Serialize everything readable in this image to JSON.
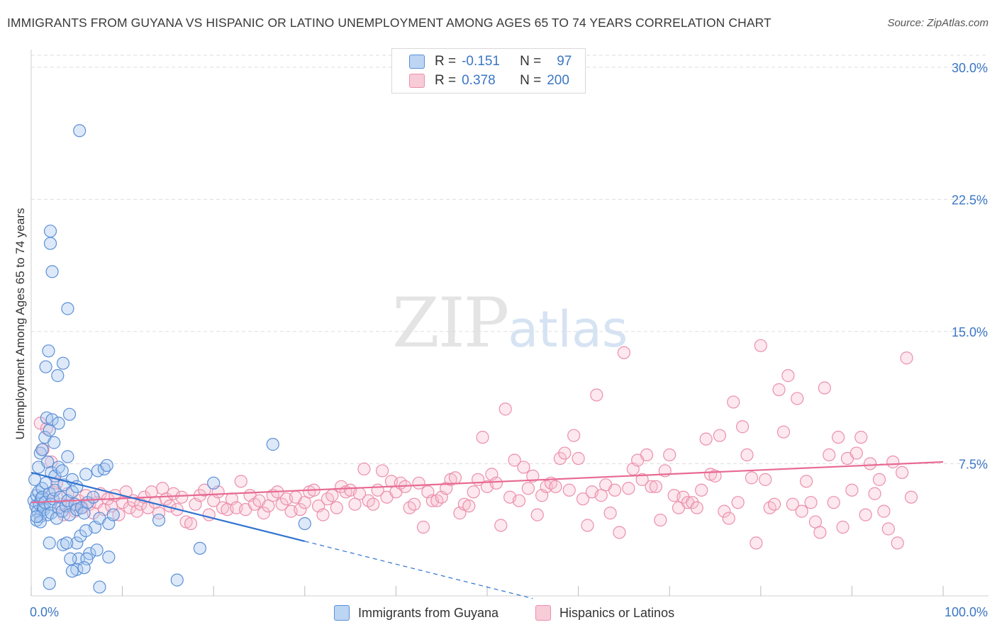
{
  "title": "IMMIGRANTS FROM GUYANA VS HISPANIC OR LATINO UNEMPLOYMENT AMONG AGES 65 TO 74 YEARS CORRELATION CHART",
  "source": "Source: ZipAtlas.com",
  "watermark": {
    "zip": "ZIP",
    "atlas": "atlas"
  },
  "legend": {
    "r_label": "R =",
    "n_label": "N =",
    "series": [
      {
        "r": "-0.151",
        "n": "97"
      },
      {
        "r": "0.378",
        "n": "200"
      }
    ]
  },
  "bottom_legend": [
    "Immigrants from Guyana",
    "Hispanics or Latinos"
  ],
  "colors": {
    "blue_fill": "#a9c8ef",
    "blue_stroke": "#5b8fd6",
    "blue_line": "#2f72d0",
    "pink_fill": "#f6bccd",
    "pink_stroke": "#ec8fac",
    "pink_line": "#e86a92",
    "grid": "#dddddd",
    "tick_text": "#3b76c4"
  },
  "chart_data": {
    "type": "scatter",
    "title": "IMMIGRANTS FROM GUYANA VS HISPANIC OR LATINO UNEMPLOYMENT AMONG AGES 65 TO 74 YEARS CORRELATION CHART",
    "xlabel": "",
    "ylabel": "Unemployment Among Ages 65 to 74 years",
    "xlim": [
      0,
      105
    ],
    "ylim": [
      0,
      31
    ],
    "y_ticks": [
      {
        "value": 7.5,
        "label": "7.5%"
      },
      {
        "value": 15,
        "label": "15.0%"
      },
      {
        "value": 22.5,
        "label": "22.5%"
      },
      {
        "value": 30,
        "label": "30.0%"
      }
    ],
    "x_ticks": [
      {
        "value": 0,
        "label": "0.0%"
      },
      {
        "value": 100,
        "label": "100.0%"
      }
    ],
    "grid": true,
    "legend_position": "top-center",
    "series": [
      {
        "name": "Immigrants from Guyana",
        "r": -0.151,
        "n": 97,
        "trend": {
          "x0": 0,
          "y0": 7.0,
          "x1": 30,
          "y1": 3.1,
          "dashed_to_x": 55
        },
        "points": [
          [
            0.3,
            5.4
          ],
          [
            0.5,
            5.1
          ],
          [
            0.6,
            5.7
          ],
          [
            0.7,
            4.8
          ],
          [
            0.8,
            5.9
          ],
          [
            0.9,
            5.2
          ],
          [
            1.0,
            4.5
          ],
          [
            1.1,
            5.5
          ],
          [
            1.2,
            6.1
          ],
          [
            1.3,
            5.0
          ],
          [
            0.4,
            6.6
          ],
          [
            0.6,
            4.3
          ],
          [
            0.8,
            7.3
          ],
          [
            1.0,
            8.1
          ],
          [
            1.2,
            5.6
          ],
          [
            1.4,
            4.9
          ],
          [
            1.5,
            5.3
          ],
          [
            1.6,
            6.4
          ],
          [
            1.8,
            4.6
          ],
          [
            2.0,
            5.8
          ],
          [
            2.1,
            5.2
          ],
          [
            2.2,
            4.7
          ],
          [
            2.4,
            5.5
          ],
          [
            2.6,
            6.0
          ],
          [
            2.8,
            4.4
          ],
          [
            3.0,
            5.0
          ],
          [
            3.2,
            5.6
          ],
          [
            3.4,
            4.8
          ],
          [
            3.6,
            6.3
          ],
          [
            3.8,
            5.1
          ],
          [
            4.0,
            5.4
          ],
          [
            4.2,
            4.6
          ],
          [
            4.5,
            5.9
          ],
          [
            4.8,
            5.2
          ],
          [
            5.0,
            4.9
          ],
          [
            1.2,
            8.3
          ],
          [
            1.5,
            9.0
          ],
          [
            1.7,
            10.1
          ],
          [
            2.0,
            9.4
          ],
          [
            2.3,
            10.0
          ],
          [
            2.5,
            8.7
          ],
          [
            1.8,
            7.6
          ],
          [
            2.2,
            7.0
          ],
          [
            2.6,
            6.8
          ],
          [
            3.0,
            7.3
          ],
          [
            3.4,
            7.1
          ],
          [
            4.0,
            7.9
          ],
          [
            4.5,
            6.6
          ],
          [
            5.0,
            6.2
          ],
          [
            6.0,
            6.9
          ],
          [
            1.6,
            13.0
          ],
          [
            1.9,
            13.9
          ],
          [
            2.1,
            20.7
          ],
          [
            2.1,
            20.0
          ],
          [
            2.3,
            18.4
          ],
          [
            2.9,
            12.5
          ],
          [
            3.5,
            13.2
          ],
          [
            4.0,
            16.3
          ],
          [
            4.2,
            10.3
          ],
          [
            3.0,
            9.8
          ],
          [
            5.3,
            26.4
          ],
          [
            5.5,
            5.0
          ],
          [
            5.8,
            4.7
          ],
          [
            6.2,
            5.3
          ],
          [
            6.8,
            5.6
          ],
          [
            7.0,
            3.9
          ],
          [
            7.5,
            4.4
          ],
          [
            8.5,
            4.1
          ],
          [
            7.3,
            7.1
          ],
          [
            8.0,
            7.2
          ],
          [
            8.3,
            7.4
          ],
          [
            9.0,
            4.6
          ],
          [
            5.0,
            3.0
          ],
          [
            5.4,
            3.4
          ],
          [
            6.0,
            3.7
          ],
          [
            6.4,
            2.4
          ],
          [
            7.2,
            2.6
          ],
          [
            8.5,
            2.2
          ],
          [
            5.2,
            2.1
          ],
          [
            6.1,
            2.1
          ],
          [
            5.0,
            1.5
          ],
          [
            5.8,
            1.6
          ],
          [
            4.5,
            1.4
          ],
          [
            2.0,
            0.7
          ],
          [
            7.5,
            0.5
          ],
          [
            16.0,
            0.9
          ],
          [
            14.0,
            4.3
          ],
          [
            18.5,
            2.7
          ],
          [
            20.0,
            6.4
          ],
          [
            26.5,
            8.6
          ],
          [
            30.0,
            4.1
          ],
          [
            3.5,
            2.9
          ],
          [
            3.9,
            3.0
          ],
          [
            4.3,
            2.1
          ],
          [
            2.0,
            3.0
          ],
          [
            1.0,
            4.2
          ],
          [
            0.6,
            4.5
          ]
        ]
      },
      {
        "name": "Hispanics or Latinos",
        "r": 0.378,
        "n": 200,
        "trend": {
          "x0": 0,
          "y0": 5.3,
          "x1": 100,
          "y1": 7.6
        },
        "points": [
          [
            1.0,
            9.8
          ],
          [
            1.3,
            8.3
          ],
          [
            1.7,
            9.5
          ],
          [
            2.2,
            7.6
          ],
          [
            2.4,
            5.9
          ],
          [
            2.8,
            6.4
          ],
          [
            3.2,
            5.2
          ],
          [
            3.6,
            4.6
          ],
          [
            4.0,
            5.8
          ],
          [
            4.4,
            5.1
          ],
          [
            4.8,
            4.8
          ],
          [
            5.2,
            5.4
          ],
          [
            5.6,
            5.0
          ],
          [
            6.0,
            5.7
          ],
          [
            6.4,
            5.2
          ],
          [
            6.8,
            4.7
          ],
          [
            7.2,
            5.3
          ],
          [
            7.6,
            5.8
          ],
          [
            8.0,
            4.9
          ],
          [
            8.4,
            5.5
          ],
          [
            8.8,
            5.1
          ],
          [
            9.2,
            5.7
          ],
          [
            9.6,
            4.6
          ],
          [
            10.0,
            5.3
          ],
          [
            10.4,
            5.9
          ],
          [
            10.8,
            5.0
          ],
          [
            11.2,
            5.4
          ],
          [
            11.6,
            4.8
          ],
          [
            12.0,
            5.2
          ],
          [
            12.4,
            5.6
          ],
          [
            12.8,
            5.0
          ],
          [
            13.2,
            5.9
          ],
          [
            13.6,
            5.3
          ],
          [
            14.0,
            4.7
          ],
          [
            14.4,
            6.1
          ],
          [
            14.8,
            5.5
          ],
          [
            15.2,
            5.1
          ],
          [
            15.6,
            5.8
          ],
          [
            16.0,
            4.9
          ],
          [
            16.5,
            5.6
          ],
          [
            17.0,
            4.2
          ],
          [
            17.5,
            4.1
          ],
          [
            18.0,
            5.2
          ],
          [
            18.5,
            5.7
          ],
          [
            19.0,
            6.0
          ],
          [
            19.5,
            4.6
          ],
          [
            20.0,
            5.4
          ],
          [
            20.5,
            5.9
          ],
          [
            21.0,
            5.0
          ],
          [
            21.5,
            4.9
          ],
          [
            22.0,
            5.5
          ],
          [
            22.5,
            5.0
          ],
          [
            23.0,
            6.5
          ],
          [
            23.5,
            4.9
          ],
          [
            24.0,
            5.7
          ],
          [
            24.5,
            5.2
          ],
          [
            25.0,
            5.4
          ],
          [
            25.5,
            4.7
          ],
          [
            26.0,
            5.1
          ],
          [
            26.5,
            5.7
          ],
          [
            27.0,
            5.9
          ],
          [
            27.5,
            5.2
          ],
          [
            28.0,
            5.5
          ],
          [
            28.5,
            4.8
          ],
          [
            29.0,
            5.6
          ],
          [
            29.5,
            4.9
          ],
          [
            30.0,
            5.3
          ],
          [
            30.5,
            5.9
          ],
          [
            31.0,
            6.0
          ],
          [
            31.5,
            5.1
          ],
          [
            32.0,
            4.6
          ],
          [
            32.5,
            5.5
          ],
          [
            33.0,
            5.7
          ],
          [
            33.5,
            5.0
          ],
          [
            34.0,
            6.2
          ],
          [
            34.5,
            5.9
          ],
          [
            35.0,
            6.0
          ],
          [
            35.5,
            5.2
          ],
          [
            36.0,
            5.8
          ],
          [
            36.5,
            7.2
          ],
          [
            37.0,
            5.4
          ],
          [
            37.5,
            5.2
          ],
          [
            38.0,
            6.0
          ],
          [
            38.5,
            7.1
          ],
          [
            39.0,
            5.6
          ],
          [
            39.5,
            6.5
          ],
          [
            40.0,
            5.9
          ],
          [
            40.5,
            6.4
          ],
          [
            41.0,
            6.2
          ],
          [
            41.5,
            5.0
          ],
          [
            42.0,
            5.2
          ],
          [
            42.5,
            6.4
          ],
          [
            43.0,
            3.9
          ],
          [
            43.5,
            5.9
          ],
          [
            44.0,
            5.4
          ],
          [
            44.5,
            5.4
          ],
          [
            45.0,
            5.6
          ],
          [
            45.5,
            6.1
          ],
          [
            46.0,
            6.6
          ],
          [
            46.5,
            6.7
          ],
          [
            47.0,
            4.7
          ],
          [
            47.5,
            5.2
          ],
          [
            48.0,
            5.1
          ],
          [
            48.5,
            5.9
          ],
          [
            49.0,
            6.6
          ],
          [
            49.5,
            9.0
          ],
          [
            50.0,
            6.2
          ],
          [
            50.5,
            6.9
          ],
          [
            51.0,
            6.4
          ],
          [
            51.5,
            4.0
          ],
          [
            52.0,
            10.6
          ],
          [
            52.5,
            5.6
          ],
          [
            53.0,
            7.7
          ],
          [
            53.5,
            5.4
          ],
          [
            54.0,
            7.3
          ],
          [
            54.5,
            6.1
          ],
          [
            55.0,
            6.8
          ],
          [
            55.5,
            4.6
          ],
          [
            56.0,
            5.7
          ],
          [
            56.5,
            6.2
          ],
          [
            57.0,
            6.4
          ],
          [
            57.5,
            6.2
          ],
          [
            58.0,
            7.8
          ],
          [
            58.5,
            8.1
          ],
          [
            59.0,
            6.0
          ],
          [
            59.5,
            9.1
          ],
          [
            60.0,
            7.8
          ],
          [
            60.5,
            5.5
          ],
          [
            61.0,
            4.0
          ],
          [
            61.5,
            5.9
          ],
          [
            62.0,
            11.4
          ],
          [
            62.5,
            5.7
          ],
          [
            63.0,
            6.3
          ],
          [
            63.5,
            4.7
          ],
          [
            64.0,
            6.0
          ],
          [
            64.5,
            3.6
          ],
          [
            65.0,
            13.8
          ],
          [
            65.5,
            6.1
          ],
          [
            66.0,
            7.2
          ],
          [
            66.5,
            7.7
          ],
          [
            67.0,
            6.6
          ],
          [
            67.5,
            8.0
          ],
          [
            68.0,
            6.2
          ],
          [
            68.5,
            6.2
          ],
          [
            69.0,
            4.3
          ],
          [
            69.5,
            7.1
          ],
          [
            70.0,
            8.0
          ],
          [
            70.5,
            5.7
          ],
          [
            71.0,
            5.0
          ],
          [
            71.5,
            5.6
          ],
          [
            72.0,
            5.3
          ],
          [
            72.5,
            5.3
          ],
          [
            73.0,
            5.0
          ],
          [
            73.5,
            6.0
          ],
          [
            74.0,
            8.9
          ],
          [
            74.5,
            6.9
          ],
          [
            75.0,
            6.8
          ],
          [
            75.5,
            9.1
          ],
          [
            76.0,
            4.8
          ],
          [
            76.5,
            4.4
          ],
          [
            77.0,
            11.0
          ],
          [
            77.5,
            5.3
          ],
          [
            78.0,
            9.6
          ],
          [
            78.5,
            8.0
          ],
          [
            79.0,
            6.7
          ],
          [
            79.5,
            3.0
          ],
          [
            80.0,
            14.2
          ],
          [
            80.5,
            6.6
          ],
          [
            81.0,
            5.0
          ],
          [
            81.5,
            5.2
          ],
          [
            82.0,
            11.7
          ],
          [
            82.5,
            9.3
          ],
          [
            83.0,
            12.5
          ],
          [
            83.5,
            5.2
          ],
          [
            84.0,
            11.2
          ],
          [
            84.5,
            4.8
          ],
          [
            85.0,
            6.5
          ],
          [
            85.5,
            5.3
          ],
          [
            86.0,
            4.2
          ],
          [
            86.5,
            3.6
          ],
          [
            87.0,
            11.8
          ],
          [
            87.5,
            8.0
          ],
          [
            88.0,
            5.3
          ],
          [
            88.5,
            9.0
          ],
          [
            89.0,
            3.9
          ],
          [
            89.5,
            7.8
          ],
          [
            90.0,
            6.0
          ],
          [
            90.5,
            8.1
          ],
          [
            91.0,
            9.0
          ],
          [
            91.5,
            4.6
          ],
          [
            92.0,
            7.5
          ],
          [
            92.5,
            5.8
          ],
          [
            93.0,
            6.6
          ],
          [
            93.5,
            4.8
          ],
          [
            94.0,
            3.8
          ],
          [
            94.5,
            7.6
          ],
          [
            95.0,
            3.0
          ],
          [
            95.5,
            7.0
          ],
          [
            96.0,
            13.5
          ],
          [
            96.5,
            5.6
          ]
        ]
      }
    ]
  }
}
